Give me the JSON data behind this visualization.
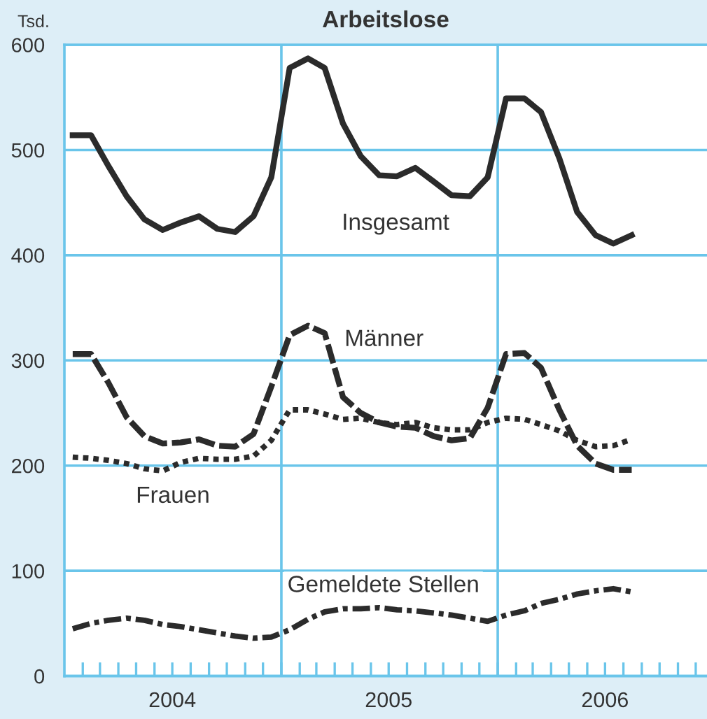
{
  "chart_data": {
    "type": "line",
    "title": "Arbeitslose",
    "ylabel": "Tsd.",
    "x": [
      "2004-01-15",
      "2004-02-15",
      "2004-03-15",
      "2004-04-15",
      "2004-05-15",
      "2004-06-15",
      "2004-07-15",
      "2004-08-15",
      "2004-09-15",
      "2004-10-15",
      "2004-11-15",
      "2004-12-15",
      "2005-01-15",
      "2005-02-15",
      "2005-03-15",
      "2005-04-15",
      "2005-05-15",
      "2005-06-15",
      "2005-07-15",
      "2005-08-15",
      "2005-09-15",
      "2005-10-15",
      "2005-11-15",
      "2005-12-15",
      "2006-01-15",
      "2006-02-15",
      "2006-03-15",
      "2006-04-15",
      "2006-05-15",
      "2006-06-15",
      "2006-07-15",
      "2006-08-15"
    ],
    "series": [
      {
        "name": "Insgesamt",
        "color": "#2b2b2b",
        "line_style": "solid",
        "values": [
          514,
          514,
          485,
          456,
          434,
          424,
          431,
          437,
          425,
          422,
          437,
          474,
          578,
          587,
          578,
          525,
          494,
          476,
          475,
          483,
          470,
          457,
          456,
          474,
          549,
          549,
          536,
          492,
          441,
          419,
          411,
          419
        ]
      },
      {
        "name": "Männer",
        "color": "#2b2b2b",
        "line_style": "dashed",
        "values": [
          306,
          306,
          279,
          246,
          228,
          221,
          222,
          225,
          219,
          218,
          230,
          275,
          324,
          333,
          326,
          265,
          250,
          241,
          237,
          236,
          228,
          224,
          226,
          255,
          306,
          307,
          293,
          253,
          219,
          202,
          196,
          196
        ]
      },
      {
        "name": "Frauen",
        "color": "#2b2b2b",
        "line_style": "dotted",
        "values": [
          208,
          207,
          205,
          202,
          197,
          195,
          203,
          207,
          206,
          206,
          209,
          224,
          253,
          253,
          249,
          244,
          245,
          241,
          239,
          241,
          236,
          234,
          234,
          241,
          245,
          244,
          239,
          233,
          224,
          218,
          219,
          225
        ]
      },
      {
        "name": "Gemeldete Stellen",
        "color": "#2b2b2b",
        "line_style": "dashdot",
        "values": [
          45,
          50,
          53,
          55,
          53,
          49,
          47,
          44,
          41,
          38,
          36,
          37,
          44,
          54,
          61,
          64,
          64,
          65,
          63,
          62,
          60,
          58,
          55,
          52,
          58,
          62,
          69,
          73,
          78,
          81,
          83,
          80
        ]
      }
    ],
    "xlim": [
      "2004-01-01",
      "2006-12-20"
    ],
    "xticks": [
      {
        "value": "2004-02-01",
        "label": null
      },
      {
        "value": "2004-03-01",
        "label": null
      },
      {
        "value": "2004-04-01",
        "label": null
      },
      {
        "value": "2004-05-01",
        "label": null
      },
      {
        "value": "2004-06-01",
        "label": null
      },
      {
        "value": "2004-07-01",
        "label": "2004"
      },
      {
        "value": "2004-08-01",
        "label": null
      },
      {
        "value": "2004-09-01",
        "label": null
      },
      {
        "value": "2004-10-01",
        "label": null
      },
      {
        "value": "2004-11-01",
        "label": null
      },
      {
        "value": "2004-12-01",
        "label": null
      },
      {
        "value": "2005-01-01",
        "label": null
      },
      {
        "value": "2005-02-01",
        "label": null
      },
      {
        "value": "2005-03-01",
        "label": null
      },
      {
        "value": "2005-04-01",
        "label": null
      },
      {
        "value": "2005-05-01",
        "label": null
      },
      {
        "value": "2005-06-01",
        "label": null
      },
      {
        "value": "2005-07-01",
        "label": "2005"
      },
      {
        "value": "2005-08-01",
        "label": null
      },
      {
        "value": "2005-09-01",
        "label": null
      },
      {
        "value": "2005-10-01",
        "label": null
      },
      {
        "value": "2005-11-01",
        "label": null
      },
      {
        "value": "2005-12-01",
        "label": null
      },
      {
        "value": "2006-01-01",
        "label": null
      },
      {
        "value": "2006-02-01",
        "label": null
      },
      {
        "value": "2006-03-01",
        "label": null
      },
      {
        "value": "2006-04-01",
        "label": null
      },
      {
        "value": "2006-05-01",
        "label": null
      },
      {
        "value": "2006-06-01",
        "label": null
      },
      {
        "value": "2006-07-01",
        "label": "2006"
      },
      {
        "value": "2006-08-01",
        "label": null
      },
      {
        "value": "2006-09-01",
        "label": null
      },
      {
        "value": "2006-10-01",
        "label": null
      },
      {
        "value": "2006-11-01",
        "label": null
      },
      {
        "value": "2006-12-01",
        "label": null
      }
    ],
    "ylim": [
      0,
      600
    ],
    "yticks": [
      0,
      100,
      200,
      300,
      400,
      500,
      600
    ],
    "grid": "y",
    "ref_lines": [
      {
        "axis": "x",
        "value": "2005-01-01",
        "color": "#6ac5ea"
      },
      {
        "axis": "x",
        "value": "2006-01-01",
        "color": "#6ac5ea"
      }
    ]
  }
}
